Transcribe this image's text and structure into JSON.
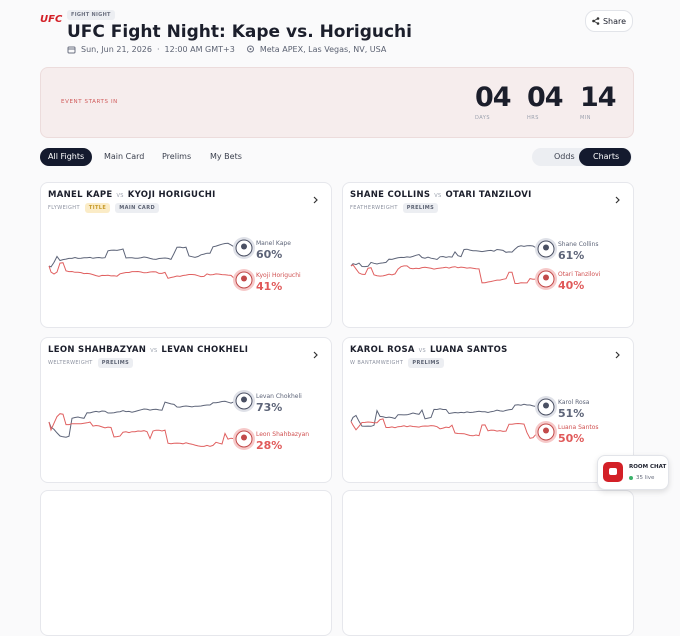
{
  "header": {
    "logo": "UFC",
    "badge": "FIGHT NIGHT",
    "title": "UFC Fight Night: Kape vs. Horiguchi",
    "date": "Sun, Jun 21, 2026",
    "separator": "·",
    "time": "12:00 AM GMT+3",
    "venue": "Meta APEX, Las Vegas, NV, USA",
    "share": "Share"
  },
  "countdown": {
    "label": "EVENT STARTS IN",
    "units": [
      {
        "value": "04",
        "label": "DAYS"
      },
      {
        "value": "04",
        "label": "HRS"
      },
      {
        "value": "14",
        "label": "MIN"
      }
    ]
  },
  "tabs": [
    "All Fights",
    "Main Card",
    "Prelims",
    "My Bets"
  ],
  "view_toggle": [
    "Odds",
    "Charts"
  ],
  "fights": [
    {
      "fighter_a": "MANEL KAPE",
      "vs": "VS",
      "fighter_b": "KYOJI HORIGUCHI",
      "division": "FLYWEIGHT",
      "tags": [
        "TITLE",
        "MAIN CARD"
      ],
      "top": {
        "name": "Manel Kape",
        "pct": "60%"
      },
      "bottom": {
        "name": "Kyoji Horiguchi",
        "pct": "41%"
      }
    },
    {
      "fighter_a": "SHANE COLLINS",
      "vs": "VS",
      "fighter_b": "OTARI TANZILOVI",
      "division": "FEATHERWEIGHT",
      "tags": [
        "PRELIMS"
      ],
      "top": {
        "name": "Shane Collins",
        "pct": "61%"
      },
      "bottom": {
        "name": "Otari Tanzilovi",
        "pct": "40%"
      }
    },
    {
      "fighter_a": "LEON SHAHBAZYAN",
      "vs": "VS",
      "fighter_b": "LEVAN CHOKHELI",
      "division": "WELTERWEIGHT",
      "tags": [
        "PRELIMS"
      ],
      "top": {
        "name": "Levan Chokheli",
        "pct": "73%"
      },
      "bottom": {
        "name": "Leon Shahbazyan",
        "pct": "28%"
      }
    },
    {
      "fighter_a": "KAROL ROSA",
      "vs": "VS",
      "fighter_b": "LUANA SANTOS",
      "division": "W BANTAMWEIGHT",
      "tags": [
        "PRELIMS"
      ],
      "top": {
        "name": "Karol Rosa",
        "pct": "51%"
      },
      "bottom": {
        "name": "Luana Santos",
        "pct": "50%"
      }
    }
  ],
  "chat": {
    "title": "ROOM CHAT",
    "status": "35 live"
  }
}
